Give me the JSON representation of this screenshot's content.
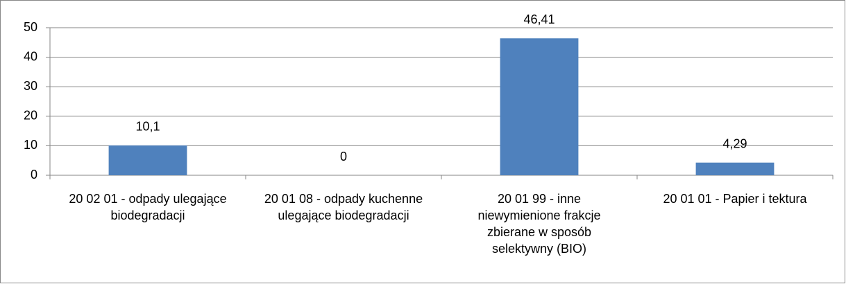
{
  "chart_data": {
    "type": "bar",
    "categories": [
      "20 02 01 - odpady ulegające biodegradacji",
      "20 01 08 - odpady kuchenne ulegające biodegradacji",
      "20 01 99 - inne niewymienione frakcje zbierane w sposób selektywny (BIO)",
      "20 01 01 - Papier i tektura"
    ],
    "values": [
      10.1,
      0,
      46.41,
      4.29
    ],
    "value_labels": [
      "10,1",
      "0",
      "46,41",
      "4,29"
    ],
    "color": "#4f81bd",
    "ylim": [
      0,
      50
    ],
    "yticks": [
      0,
      10,
      20,
      30,
      40,
      50
    ],
    "grid": true
  }
}
